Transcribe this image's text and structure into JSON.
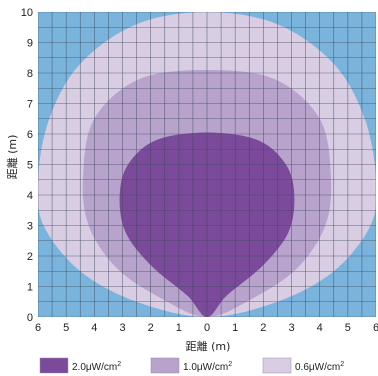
{
  "chart_data": {
    "type": "area",
    "xlabel": "距離 (m)",
    "ylabel": "距離 (m)",
    "xlim": [
      -6,
      6
    ],
    "ylim": [
      0,
      10
    ],
    "x_ticks": [
      "6",
      "5",
      "4",
      "3",
      "2",
      "1",
      "0",
      "1",
      "2",
      "3",
      "4",
      "5",
      "6"
    ],
    "y_ticks": [
      "0",
      "1",
      "2",
      "3",
      "4",
      "5",
      "6",
      "7",
      "8",
      "9",
      "10"
    ],
    "grid": true,
    "background_color": "#7ab4dc",
    "grid_color": "#3d4a5a",
    "legend_position": "bottom",
    "series": [
      {
        "name": "0.6μW/cm²",
        "label_main": "0.6μW/cm",
        "label_sup": "2",
        "color": "#d9cde4",
        "boundary": [
          [
            0,
            0
          ],
          [
            -2.5,
            0.5
          ],
          [
            -4.5,
            1.5
          ],
          [
            -5.8,
            3.0
          ],
          [
            -6.0,
            4.5
          ],
          [
            -5.6,
            6.5
          ],
          [
            -4.5,
            8.3
          ],
          [
            -2.5,
            9.6
          ],
          [
            0,
            10
          ],
          [
            2.5,
            9.6
          ],
          [
            4.5,
            8.3
          ],
          [
            5.6,
            6.5
          ],
          [
            6.0,
            4.5
          ],
          [
            5.8,
            3.0
          ],
          [
            4.5,
            1.5
          ],
          [
            2.5,
            0.5
          ]
        ]
      },
      {
        "name": "1.0μW/cm²",
        "label_main": "1.0μW/cm",
        "label_sup": "2",
        "color": "#b7a3cb",
        "boundary": [
          [
            0,
            0
          ],
          [
            -1.6,
            0.6
          ],
          [
            -3.2,
            1.6
          ],
          [
            -4.2,
            3.0
          ],
          [
            -4.4,
            4.6
          ],
          [
            -4.0,
            6.5
          ],
          [
            -2.4,
            7.8
          ],
          [
            0,
            8.1
          ],
          [
            2.4,
            7.8
          ],
          [
            4.0,
            6.5
          ],
          [
            4.4,
            4.6
          ],
          [
            4.2,
            3.0
          ],
          [
            3.2,
            1.6
          ],
          [
            1.6,
            0.6
          ]
        ]
      },
      {
        "name": "2.0μW/cm²",
        "label_main": "2.0μW/cm",
        "label_sup": "2",
        "color": "#7b4a9b",
        "boundary": [
          [
            0,
            0
          ],
          [
            -0.7,
            0.7
          ],
          [
            -2.0,
            1.7
          ],
          [
            -2.9,
            2.8
          ],
          [
            -3.1,
            4.0
          ],
          [
            -2.8,
            5.0
          ],
          [
            -1.8,
            5.8
          ],
          [
            0,
            6.05
          ],
          [
            1.8,
            5.8
          ],
          [
            2.8,
            5.0
          ],
          [
            3.1,
            4.0
          ],
          [
            2.9,
            2.8
          ],
          [
            2.0,
            1.7
          ],
          [
            0.7,
            0.7
          ]
        ]
      }
    ],
    "legend_order": [
      2,
      1,
      0
    ]
  }
}
